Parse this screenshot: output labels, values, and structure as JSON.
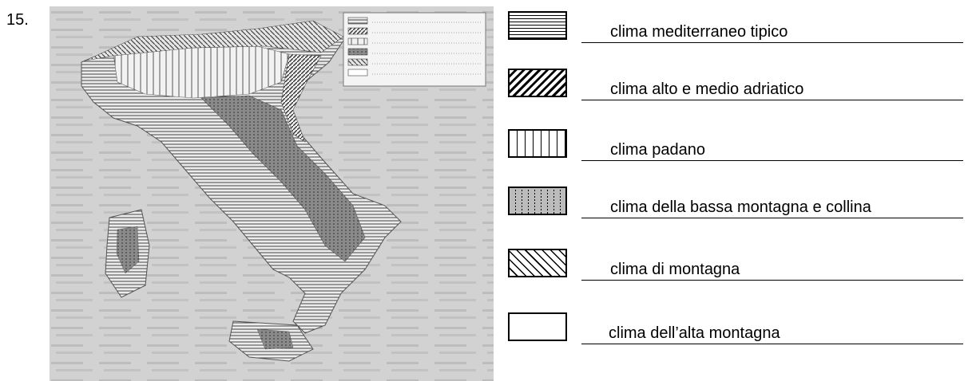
{
  "exercise": {
    "number": "15."
  },
  "map": {
    "alt": "Map of Italy with climate zones shaded using patterns",
    "mini_legend_rows": 6
  },
  "legend": [
    {
      "pattern": "horizontal-lines",
      "label": "clima mediterraneo tipico"
    },
    {
      "pattern": "dense-diagonal-lines",
      "label": "clima alto e medio adriatico"
    },
    {
      "pattern": "vertical-lines",
      "label": "clima padano"
    },
    {
      "pattern": "gray-dotted-vertical-lines",
      "label": "clima della bassa montagna e collina"
    },
    {
      "pattern": "back-diagonal-lines",
      "label": "clima di montagna"
    },
    {
      "pattern": "blank",
      "label": "clima dell’alta montagna"
    }
  ],
  "colors": {
    "ink": "#000000",
    "map_background": "#d2d2d2",
    "swatch_gray": "#bcbcbc"
  }
}
